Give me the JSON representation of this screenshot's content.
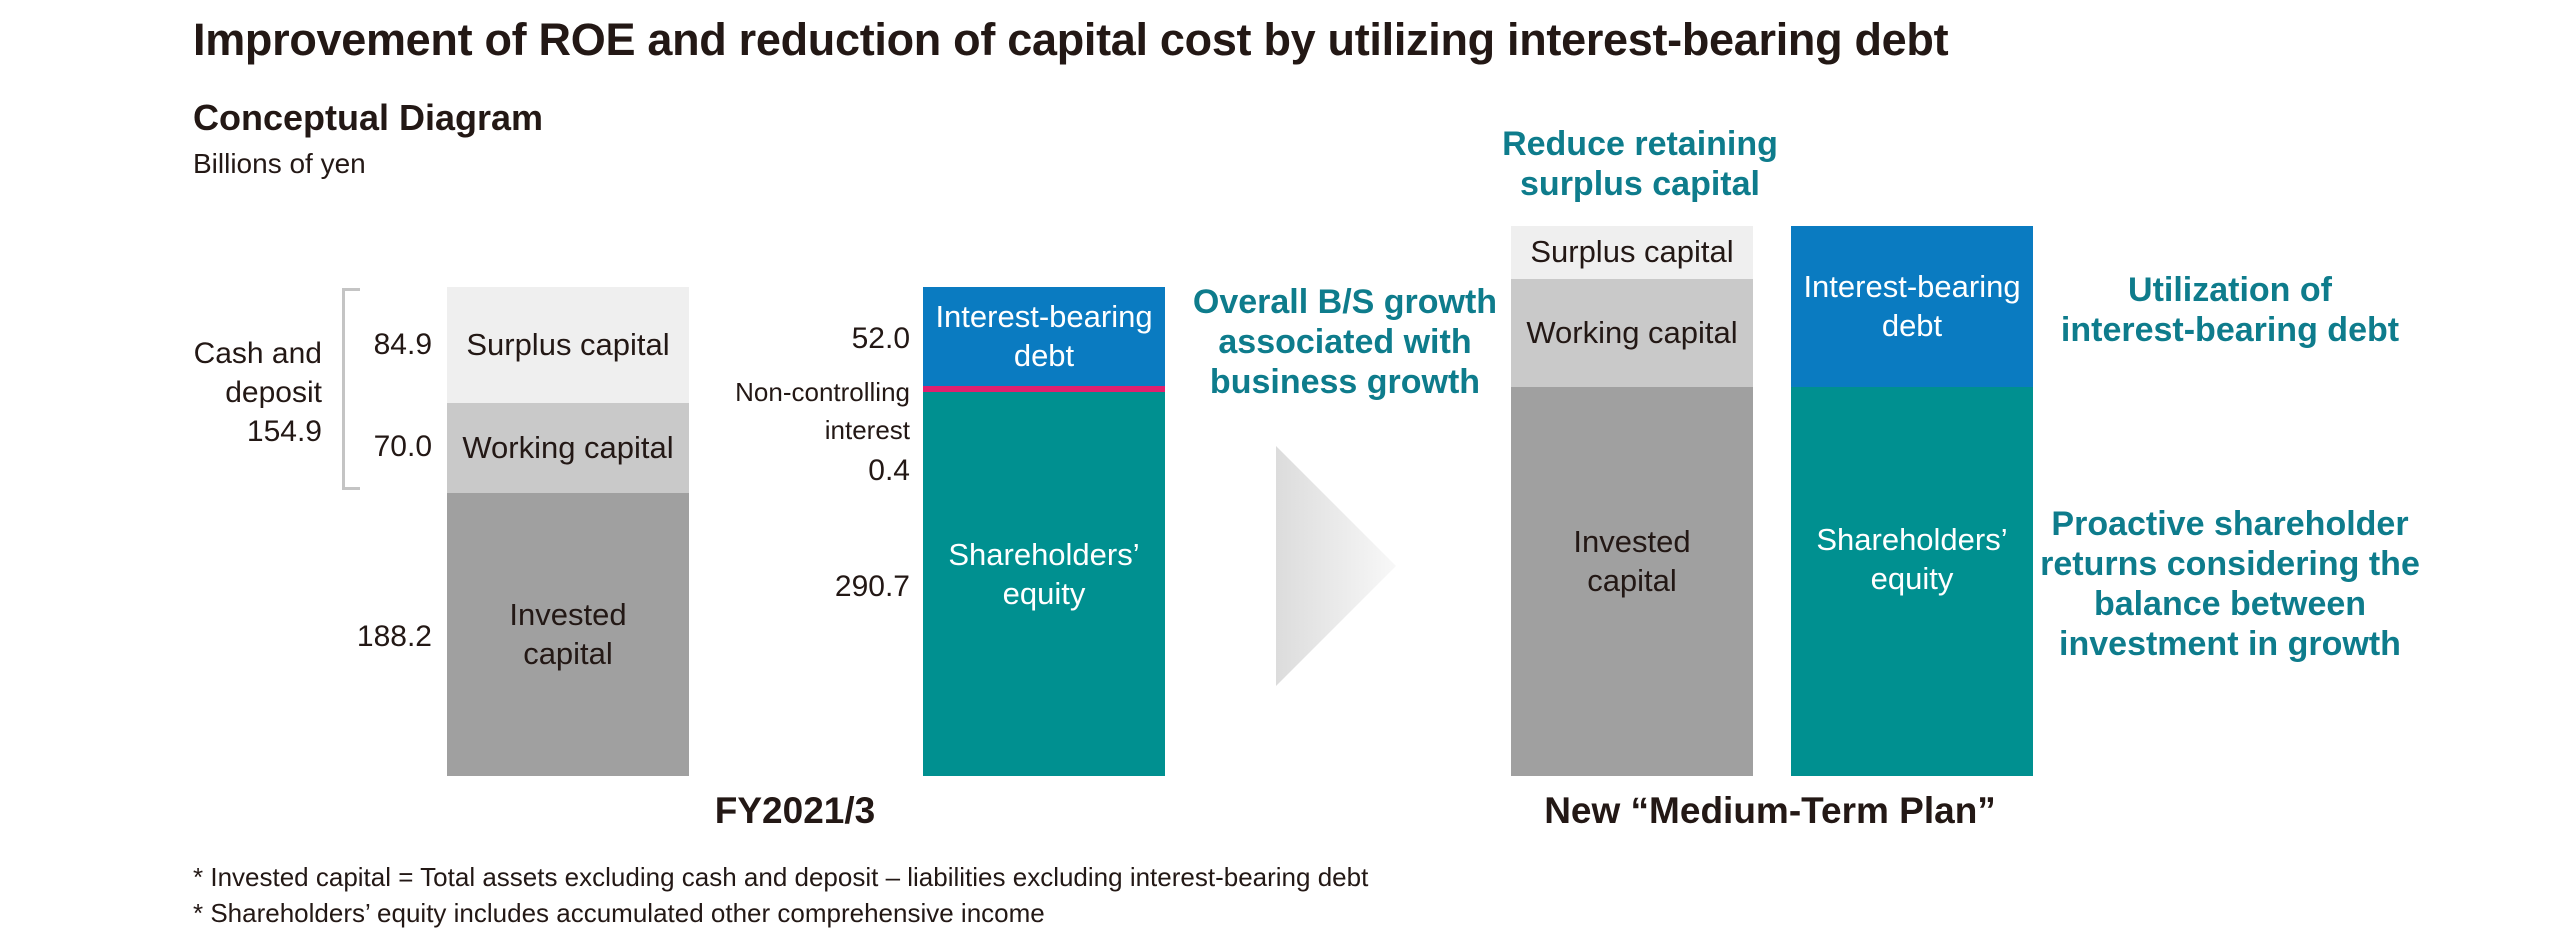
{
  "header": {
    "title": "Improvement of ROE and reduction of capital cost by utilizing interest-bearing debt",
    "subtitle": "Conceptual Diagram",
    "units": "Billions of yen"
  },
  "fy2021": {
    "caption": "FY2021/3",
    "cash_label_line1": "Cash and",
    "cash_label_line2": "deposit",
    "cash_value": "154.9",
    "assets": {
      "surplus_label": "Surplus capital",
      "surplus_value": "84.9",
      "working_label": "Working capital",
      "working_value": "70.0",
      "invested_label_line1": "Invested",
      "invested_label_line2": "capital",
      "invested_value": "188.2"
    },
    "liabilities": {
      "debt_label_line1": "Interest-bearing",
      "debt_label_line2": "debt",
      "debt_value": "52.0",
      "nci_label_line1": "Non-controlling",
      "nci_label_line2": "interest",
      "nci_value": "0.4",
      "equity_label_line1": "Shareholders’",
      "equity_label_line2": "equity",
      "equity_value": "290.7"
    }
  },
  "middle": {
    "growth_line1": "Overall B/S growth",
    "growth_line2": "associated with",
    "growth_line3": "business growth"
  },
  "plan": {
    "caption": "New “Medium-Term Plan”",
    "reduce_line1": "Reduce retaining",
    "reduce_line2": "surplus capital",
    "assets": {
      "surplus_label": "Surplus capital",
      "working_label": "Working capital",
      "invested_label_line1": "Invested",
      "invested_label_line2": "capital"
    },
    "liabilities": {
      "debt_label_line1": "Interest-bearing",
      "debt_label_line2": "debt",
      "equity_label_line1": "Shareholders’",
      "equity_label_line2": "equity"
    },
    "utilization_line1": "Utilization of",
    "utilization_line2": "interest-bearing debt",
    "returns_line1": "Proactive shareholder",
    "returns_line2": "returns considering the",
    "returns_line3": "balance between",
    "returns_line4": "investment in growth"
  },
  "notes": {
    "note1": "* Invested capital = Total assets excluding cash and deposit – liabilities excluding interest-bearing debt",
    "note2": "* Shareholders’ equity includes accumulated other comprehensive income"
  },
  "colors": {
    "surplus": "#efefef",
    "working": "#c9c9c9",
    "invested": "#a0a0a0",
    "debt": "#0a7bc1",
    "equity": "#009090",
    "nci": "#e0206e",
    "accent_text": "#0e7c8c"
  }
}
